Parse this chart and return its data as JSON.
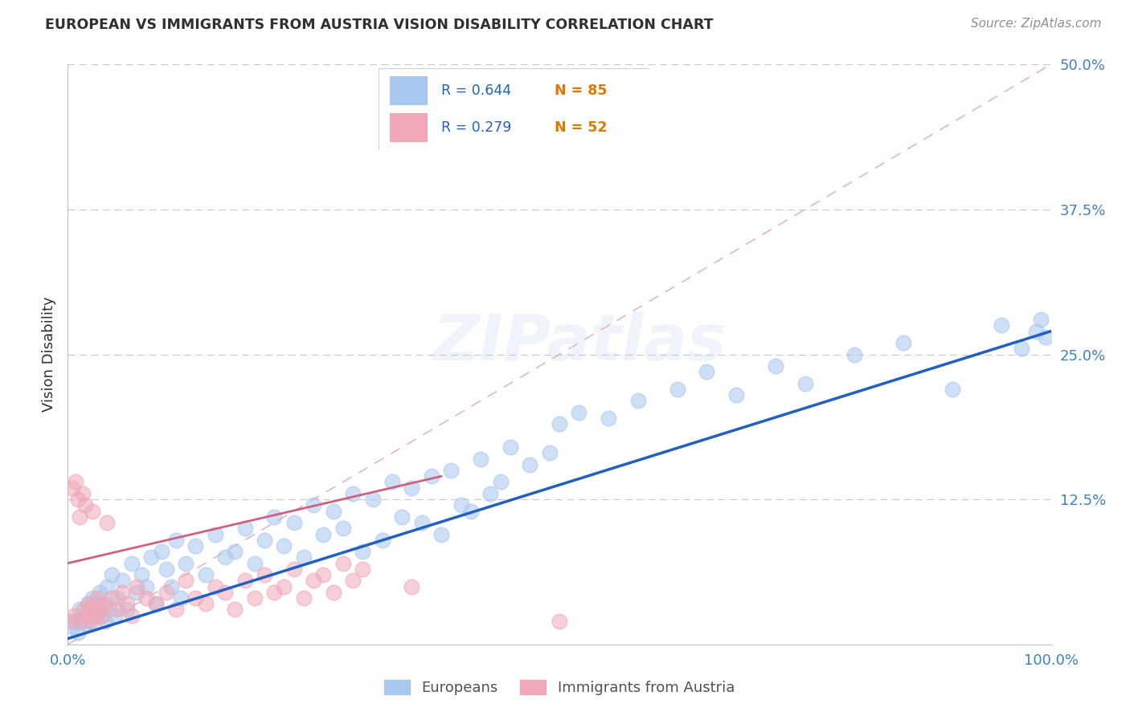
{
  "title": "EUROPEAN VS IMMIGRANTS FROM AUSTRIA VISION DISABILITY CORRELATION CHART",
  "source": "Source: ZipAtlas.com",
  "ylabel": "Vision Disability",
  "xlim": [
    0,
    100
  ],
  "ylim": [
    0,
    50
  ],
  "yticks": [
    0,
    12.5,
    25.0,
    37.5,
    50.0
  ],
  "watermark": "ZIPatlas",
  "legend_R1": "R = 0.644",
  "legend_N1": "N = 85",
  "legend_R2": "R = 0.279",
  "legend_N2": "N = 52",
  "color_european": "#a8c8f0",
  "color_immigrant": "#f0a8b8",
  "color_european_line": "#2060c0",
  "color_immigrant_line": "#d06080",
  "color_diag": "#e0b0b8",
  "title_color": "#303030",
  "source_color": "#909090",
  "axis_label_color": "#4080c0",
  "ylabel_color": "#303030",
  "eu_line_start_x": 0,
  "eu_line_start_y": 0.5,
  "eu_line_end_x": 100,
  "eu_line_end_y": 27.0,
  "im_line_start_x": 0,
  "im_line_start_y": 7.0,
  "im_line_end_x": 38,
  "im_line_end_y": 14.5,
  "europeans_x": [
    0.5,
    0.8,
    1.0,
    1.2,
    1.5,
    1.8,
    2.0,
    2.2,
    2.5,
    2.8,
    3.0,
    3.2,
    3.5,
    3.8,
    4.0,
    4.2,
    4.5,
    4.8,
    5.0,
    5.5,
    6.0,
    6.5,
    7.0,
    7.5,
    8.0,
    8.5,
    9.0,
    9.5,
    10.0,
    10.5,
    11.0,
    11.5,
    12.0,
    13.0,
    14.0,
    15.0,
    16.0,
    17.0,
    18.0,
    19.0,
    20.0,
    21.0,
    22.0,
    23.0,
    24.0,
    25.0,
    26.0,
    27.0,
    28.0,
    29.0,
    30.0,
    31.0,
    32.0,
    33.0,
    34.0,
    35.0,
    36.0,
    37.0,
    38.0,
    39.0,
    40.0,
    41.0,
    42.0,
    43.0,
    44.0,
    45.0,
    47.0,
    49.0,
    52.0,
    55.0,
    58.0,
    62.0,
    65.0,
    68.0,
    72.0,
    75.0,
    80.0,
    85.0,
    90.0,
    95.0,
    97.0,
    98.5,
    99.0,
    99.5,
    50.0
  ],
  "europeans_y": [
    1.5,
    2.0,
    1.0,
    3.0,
    2.5,
    1.8,
    3.5,
    2.0,
    4.0,
    3.0,
    2.5,
    4.5,
    3.5,
    2.0,
    5.0,
    3.0,
    6.0,
    2.5,
    4.0,
    5.5,
    3.0,
    7.0,
    4.5,
    6.0,
    5.0,
    7.5,
    3.5,
    8.0,
    6.5,
    5.0,
    9.0,
    4.0,
    7.0,
    8.5,
    6.0,
    9.5,
    7.5,
    8.0,
    10.0,
    7.0,
    9.0,
    11.0,
    8.5,
    10.5,
    7.5,
    12.0,
    9.5,
    11.5,
    10.0,
    13.0,
    8.0,
    12.5,
    9.0,
    14.0,
    11.0,
    13.5,
    10.5,
    14.5,
    9.5,
    15.0,
    12.0,
    11.5,
    16.0,
    13.0,
    14.0,
    17.0,
    15.5,
    16.5,
    20.0,
    19.5,
    21.0,
    22.0,
    23.5,
    21.5,
    24.0,
    22.5,
    25.0,
    26.0,
    22.0,
    27.5,
    25.5,
    27.0,
    28.0,
    26.5,
    19.0
  ],
  "immigrants_x": [
    0.3,
    0.5,
    0.6,
    0.8,
    1.0,
    1.2,
    1.4,
    1.5,
    1.6,
    1.8,
    2.0,
    2.2,
    2.4,
    2.5,
    2.6,
    2.8,
    3.0,
    3.2,
    3.5,
    3.8,
    4.0,
    4.5,
    5.0,
    5.5,
    6.0,
    6.5,
    7.0,
    8.0,
    9.0,
    10.0,
    11.0,
    12.0,
    13.0,
    14.0,
    15.0,
    16.0,
    17.0,
    18.0,
    19.0,
    20.0,
    21.0,
    22.0,
    23.0,
    24.0,
    25.0,
    26.0,
    27.0,
    28.0,
    29.0,
    30.0,
    35.0,
    50.0
  ],
  "immigrants_y": [
    2.0,
    13.5,
    2.5,
    14.0,
    12.5,
    11.0,
    2.0,
    13.0,
    3.0,
    12.0,
    2.5,
    3.5,
    2.0,
    11.5,
    3.0,
    2.5,
    4.0,
    3.0,
    2.5,
    3.5,
    10.5,
    4.0,
    3.0,
    4.5,
    3.5,
    2.5,
    5.0,
    4.0,
    3.5,
    4.5,
    3.0,
    5.5,
    4.0,
    3.5,
    5.0,
    4.5,
    3.0,
    5.5,
    4.0,
    6.0,
    4.5,
    5.0,
    6.5,
    4.0,
    5.5,
    6.0,
    4.5,
    7.0,
    5.5,
    6.5,
    5.0,
    2.0
  ]
}
